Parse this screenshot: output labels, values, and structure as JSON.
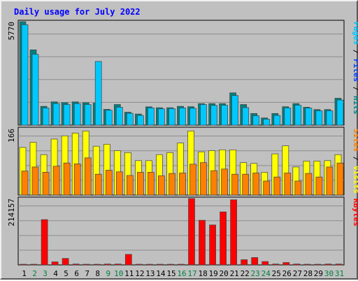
{
  "chart_data": {
    "title": "Daily usage for July 2022",
    "type": "bar",
    "days": [
      "1",
      "2",
      "3",
      "4",
      "5",
      "6",
      "7",
      "8",
      "9",
      "10",
      "11",
      "12",
      "13",
      "14",
      "15",
      "16",
      "17",
      "18",
      "19",
      "20",
      "21",
      "22",
      "23",
      "24",
      "25",
      "26",
      "27",
      "28",
      "29",
      "30",
      "31"
    ],
    "weekend_days": [
      "2",
      "3",
      "9",
      "10",
      "16",
      "17",
      "23",
      "24",
      "30",
      "31"
    ],
    "colors": {
      "hits": "#008080",
      "files": "#00c8ff",
      "sites": "#ff8000",
      "visits": "#ffff00",
      "kbytes": "#ff0000",
      "title": "#0000ff",
      "weekday_label": "#000000",
      "weekend_label": "#008040",
      "background": "#c0c0c0",
      "grid": "#8c8c8c"
    },
    "panels": [
      {
        "id": "hits_files",
        "ymax_label": "5770",
        "ylim": [
          0,
          5770
        ],
        "label_parts": [
          {
            "text": "Pages",
            "color": "#00c8ff"
          },
          {
            "text": " / ",
            "color": "#000000"
          },
          {
            "text": "Files",
            "color": "#0040ff"
          },
          {
            "text": " / ",
            "color": "#000000"
          },
          {
            "text": "Hits",
            "color": "#008080"
          }
        ],
        "series": [
          {
            "name": "Hits",
            "color": "#008080",
            "values": [
              5770,
              4200,
              1050,
              1300,
              1250,
              1300,
              1250,
              1230,
              880,
              1150,
              720,
              620,
              1020,
              970,
              970,
              1050,
              1030,
              1200,
              1200,
              1200,
              1800,
              1150,
              650,
              400,
              650,
              1030,
              1200,
              1000,
              870,
              870,
              1500
            ]
          },
          {
            "name": "Files",
            "color": "#00c8ff",
            "values": [
              5600,
              3950,
              960,
              1200,
              1150,
              1200,
              1150,
              3550,
              830,
              1000,
              660,
              540,
              960,
              910,
              920,
              960,
              940,
              1150,
              1100,
              1110,
              1650,
              980,
              520,
              330,
              540,
              960,
              1110,
              950,
              800,
              800,
              1400
            ]
          }
        ]
      },
      {
        "id": "sites_visits",
        "ymax_label": "166",
        "ylim": [
          0,
          166
        ],
        "label_parts": [
          {
            "text": "Sites",
            "color": "#ff8000"
          },
          {
            "text": " / ",
            "color": "#000000"
          },
          {
            "text": "Visits",
            "color": "#ffff00"
          }
        ],
        "series": [
          {
            "name": "Visits",
            "color": "#ffff00",
            "values": [
              119,
              132,
              101,
              140,
              148,
              155,
              160,
              122,
              127,
              111,
              106,
              86,
              86,
              101,
              106,
              130,
              160,
              108,
              111,
              113,
              113,
              81,
              79,
              57,
              103,
              123,
              70,
              85,
              85,
              86,
              101
            ]
          },
          {
            "name": "Sites",
            "color": "#ff8000",
            "values": [
              60,
              70,
              57,
              72,
              80,
              78,
              93,
              52,
              62,
              58,
              49,
              57,
              57,
              48,
              54,
              55,
              77,
              81,
              61,
              65,
              52,
              52,
              55,
              35,
              45,
              55,
              35,
              54,
              45,
              70,
              80
            ]
          }
        ]
      },
      {
        "id": "kbytes",
        "ymax_label": "214157",
        "ylim": [
          0,
          214157
        ],
        "label_parts": [
          {
            "text": "KBytes",
            "color": "#ff0000"
          }
        ],
        "series": [
          {
            "name": "KBytes",
            "color": "#ff0000",
            "values": [
              2000,
              2000,
              146000,
              10000,
              21000,
              3000,
              2000,
              2000,
              3000,
              3000,
              34000,
              2000,
              2000,
              2000,
              2000,
              2000,
              214157,
              144000,
              129000,
              171000,
              210000,
              17000,
              24000,
              11000,
              3000,
              8000,
              3000,
              2000,
              2000,
              3000,
              3000
            ]
          }
        ]
      }
    ]
  }
}
